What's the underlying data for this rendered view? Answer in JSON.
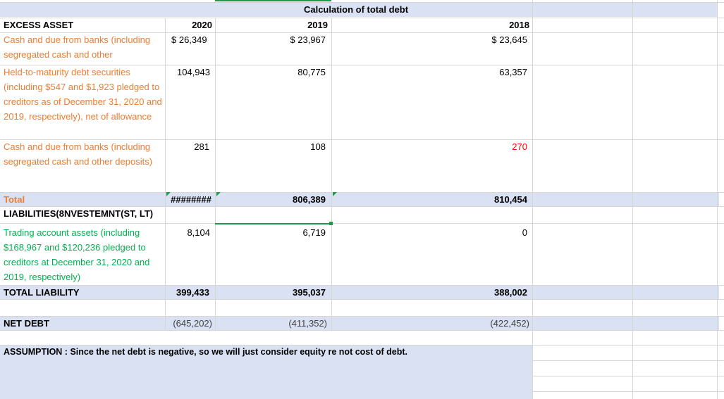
{
  "title": "Calculation of total debt",
  "headers": {
    "label": "EXCESS ASSET",
    "y2020": "2020",
    "y2019": "2019",
    "y2018": "2018"
  },
  "rows": [
    {
      "label": "Cash and due from banks (including segregated cash and other",
      "v2020": "$ 26,349",
      "v2019": "$ 23,967",
      "v2018": "$ 23,645"
    },
    {
      "label": "Held-to-maturity debt securities (including $547 and $1,923 pledged to creditors as of December 31, 2020 and 2019, respectively), net of allowance",
      "v2020": "104,943",
      "v2019": "80,775",
      "v2018": "63,357"
    },
    {
      "label": "Cash and due from banks (including segregated cash and other deposits)",
      "v2020": "281",
      "v2019": "108",
      "v2018": "270"
    }
  ],
  "total": {
    "label": "Total",
    "v2020": "########",
    "v2019": "806,389",
    "v2018": "810,454"
  },
  "liabilities_header": "LIABILITIES(8NVESTEMNT(ST, LT)",
  "trading": {
    "label": "Trading account assets (including $168,967 and $120,236 pledged to creditors at December 31, 2020 and 2019, respectively)",
    "v2020": "8,104",
    "v2019": "6,719",
    "v2018": "0"
  },
  "total_liability": {
    "label": "TOTAL LIABILITY",
    "v2020": "399,433",
    "v2019": "395,037",
    "v2018": "388,002"
  },
  "net_debt": {
    "label": "NET DEBT",
    "v2020": "(645,202)",
    "v2019": "(411,352)",
    "v2018": "(422,452)"
  },
  "assumption": "ASSUMPTION : Since the net debt is negative, so we will just consider equity re not cost of debt.",
  "colors": {
    "band": "#d9e1f2",
    "orange": "#ed7d31",
    "green": "#00b050",
    "red": "#ff0000",
    "grid": "#d6d6d6",
    "selection": "#1e9a4b"
  }
}
